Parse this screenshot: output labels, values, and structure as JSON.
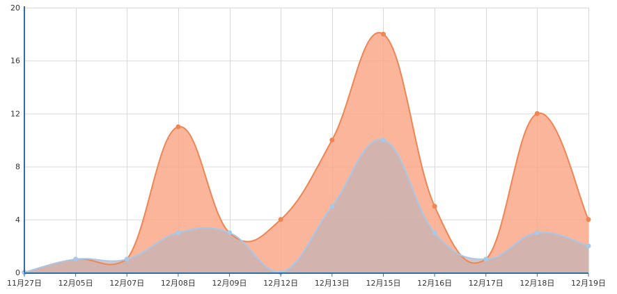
{
  "chart_data": {
    "type": "area",
    "categories": [
      "11月27日",
      "12月05日",
      "12月07日",
      "12月08日",
      "12月09日",
      "12月12日",
      "12月13日",
      "12月15日",
      "12月16日",
      "12月17日",
      "12月18日",
      "12月19日"
    ],
    "series": [
      {
        "values": [
          0,
          1,
          1,
          11,
          3,
          4,
          10,
          18,
          5,
          1,
          12,
          4
        ],
        "color": "#ee8553",
        "fill": "#f9a88a"
      },
      {
        "values": [
          0,
          1,
          1,
          3,
          3,
          0,
          5,
          10,
          3,
          1,
          3,
          2
        ],
        "color": "#a8c8e8",
        "fill": "#c5b3b3"
      }
    ],
    "y_ticks": [
      "0",
      "4",
      "8",
      "12",
      "16",
      "20"
    ],
    "ylim": [
      0,
      20
    ],
    "smooth": true,
    "grid": true,
    "legend": "none",
    "title": "",
    "xlabel": "",
    "ylabel": ""
  }
}
